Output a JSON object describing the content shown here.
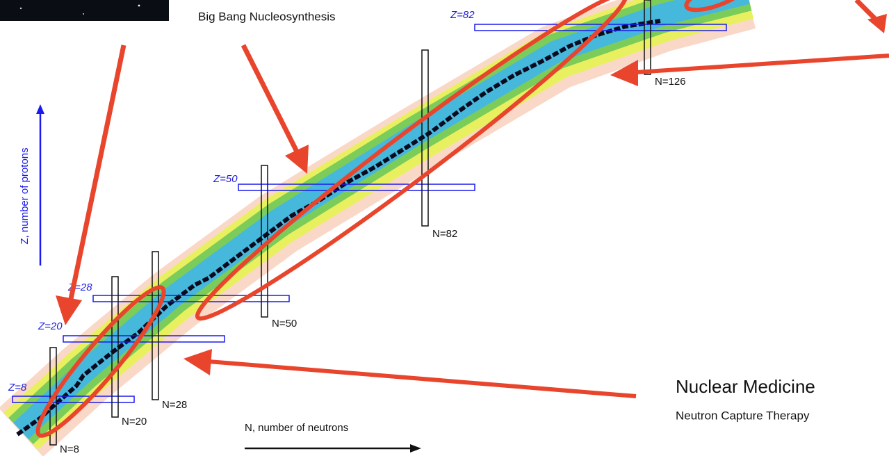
{
  "annotations": {
    "big_bang": "Big Bang Nucleosynthesis",
    "nuclear_medicine": {
      "title": "Nuclear Medicine",
      "subtitle": "Neutron Capture Therapy"
    }
  },
  "axes": {
    "y_label": "Z, number of protons",
    "x_label": "N, number of neutrons"
  },
  "magic_numbers": {
    "protons": [
      "Z=82",
      "Z=50",
      "Z=28",
      "Z=20",
      "Z=8"
    ],
    "neutrons": [
      "N=126",
      "N=82",
      "N=50",
      "N=28",
      "N=20",
      "N=8"
    ]
  }
}
